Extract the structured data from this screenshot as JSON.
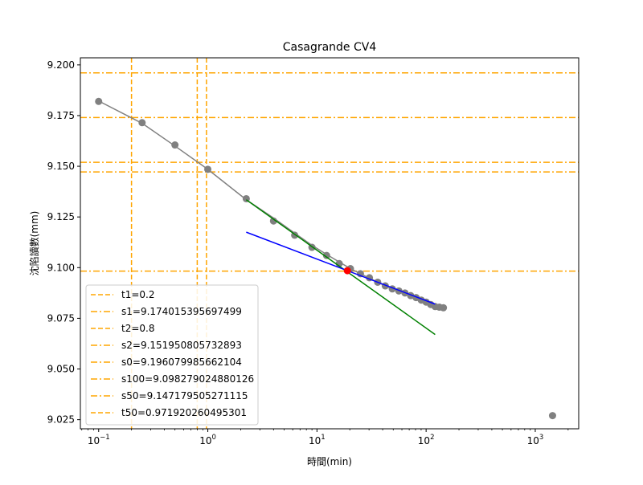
{
  "chart_data": {
    "type": "scatter",
    "title": "Casagrande CV4",
    "xlabel": "時間(min)",
    "ylabel": "沈陷讀數(mm)",
    "xscale": "log",
    "xlim": [
      0.068,
      2500
    ],
    "ylim": [
      9.0205,
      9.2035
    ],
    "x_ticks": [
      {
        "value": 0.1,
        "base": "10",
        "exp": "−1"
      },
      {
        "value": 1,
        "base": "10",
        "exp": "0"
      },
      {
        "value": 10,
        "base": "10",
        "exp": "1"
      },
      {
        "value": 100,
        "base": "10",
        "exp": "2"
      },
      {
        "value": 1000,
        "base": "10",
        "exp": "3"
      }
    ],
    "y_ticks": [
      {
        "value": 9.2,
        "label": "9.200"
      },
      {
        "value": 9.175,
        "label": "9.175"
      },
      {
        "value": 9.15,
        "label": "9.150"
      },
      {
        "value": 9.125,
        "label": "9.125"
      },
      {
        "value": 9.1,
        "label": "9.100"
      },
      {
        "value": 9.075,
        "label": "9.075"
      },
      {
        "value": 9.05,
        "label": "9.050"
      },
      {
        "value": 9.025,
        "label": "9.025"
      }
    ],
    "grid": false,
    "legend_position": "lower-left",
    "colors": {
      "points": "#808080",
      "curve": "#808080",
      "green_line": "#008000",
      "blue_line": "#0000ff",
      "intersection": "#ff0000",
      "reference": "#ffa500"
    },
    "points": {
      "x": [
        0.1,
        0.25,
        0.5,
        1,
        2.25,
        4,
        6.25,
        9,
        12.25,
        16,
        20.25,
        25,
        30.25,
        36,
        42.25,
        49,
        56.25,
        64,
        72.25,
        81,
        90.25,
        100,
        110.25,
        121,
        132.25,
        144,
        1440
      ],
      "y": [
        9.182,
        9.1715,
        9.1605,
        9.1485,
        9.134,
        9.123,
        9.116,
        9.11,
        9.106,
        9.102,
        9.0995,
        9.097,
        9.095,
        9.0928,
        9.091,
        9.0895,
        9.0885,
        9.0875,
        9.0862,
        9.0852,
        9.084,
        9.083,
        9.0818,
        9.0808,
        9.0805,
        9.0802,
        9.027
      ]
    },
    "curve": {
      "x": [
        0.1,
        0.25,
        0.5,
        1,
        2.25,
        4,
        6.25,
        9,
        12.25,
        16,
        20.25,
        25,
        30.25,
        36,
        42.25,
        49,
        56.25,
        64,
        72.25,
        81,
        90.25,
        100,
        110.25,
        121,
        132.25,
        144
      ],
      "y": [
        9.1822,
        9.1712,
        9.16,
        9.1485,
        9.1335,
        9.1245,
        9.117,
        9.111,
        9.1065,
        9.1028,
        9.0995,
        9.097,
        9.0948,
        9.0928,
        9.091,
        9.0895,
        9.0882,
        9.087,
        9.0858,
        9.0847,
        9.0837,
        9.0828,
        9.0819,
        9.081,
        9.0803,
        9.0797
      ]
    },
    "green_line": {
      "x": [
        2.25,
        121
      ],
      "y": [
        9.1335,
        9.067
      ]
    },
    "blue_line": {
      "x": [
        2.25,
        121
      ],
      "y": [
        9.1175,
        9.082
      ]
    },
    "intersection": {
      "x": 19,
      "y": 9.0985
    },
    "reference_lines": [
      {
        "orientation": "vertical",
        "style": "dashed",
        "value": 0.2,
        "label": "t1=0.2"
      },
      {
        "orientation": "horizontal",
        "style": "dashdot",
        "value": 9.174015395697499,
        "label": "s1=9.174015395697499"
      },
      {
        "orientation": "vertical",
        "style": "dashed",
        "value": 0.8,
        "label": "t2=0.8"
      },
      {
        "orientation": "horizontal",
        "style": "dashdot",
        "value": 9.151950805732893,
        "label": "s2=9.151950805732893"
      },
      {
        "orientation": "horizontal",
        "style": "dashdot",
        "value": 9.196079985662104,
        "label": "s0=9.196079985662104"
      },
      {
        "orientation": "horizontal",
        "style": "dashdot",
        "value": 9.098279024880126,
        "label": "s100=9.098279024880126"
      },
      {
        "orientation": "horizontal",
        "style": "dashdot",
        "value": 9.147179505271115,
        "label": "s50=9.147179505271115"
      },
      {
        "orientation": "vertical",
        "style": "dashed",
        "value": 0.971920260495301,
        "label": "t50=0.971920260495301"
      }
    ]
  }
}
